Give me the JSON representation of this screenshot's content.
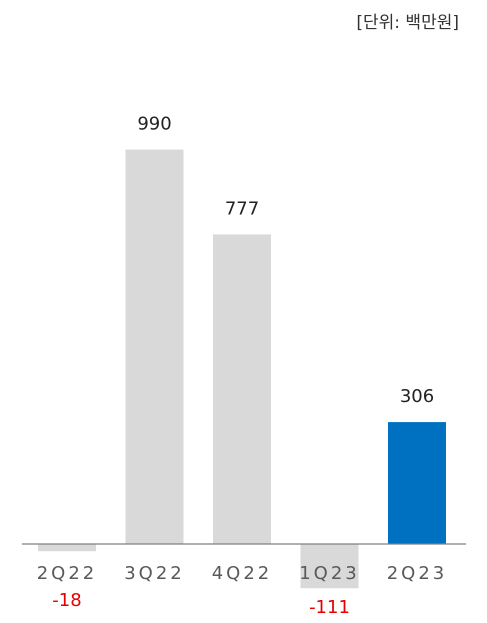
{
  "unit_label": "[단위: 백만원]",
  "colors": {
    "bar_default": "#d9d9d9",
    "bar_highlight": "#0070c0",
    "value_label": "#222222",
    "negative_value_label": "#e60000",
    "axis_line": "#7f7f7f",
    "category_label": "#595959"
  },
  "chart_data": {
    "type": "bar",
    "title": "",
    "xlabel": "",
    "ylabel": "",
    "categories": [
      "2Q22",
      "3Q22",
      "4Q22",
      "1Q23",
      "2Q23"
    ],
    "values": [
      -18,
      990,
      777,
      -111,
      306
    ],
    "value_labels": [
      "-18",
      "990",
      "777",
      "-111",
      "306"
    ],
    "highlight_index": 4,
    "ylim": [
      -111,
      990
    ],
    "grid": false,
    "legend": "none"
  }
}
